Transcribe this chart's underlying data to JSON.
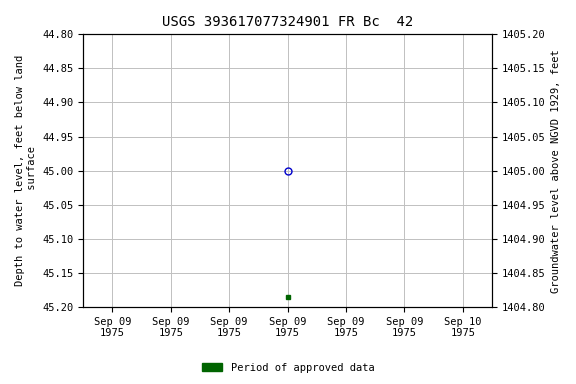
{
  "title": "USGS 393617077324901 FR Bc  42",
  "ylabel_left": "Depth to water level, feet below land\n surface",
  "ylabel_right": "Groundwater level above NGVD 1929, feet",
  "ylim_left": [
    45.2,
    44.8
  ],
  "ylim_right": [
    1404.8,
    1405.2
  ],
  "yticks_left": [
    44.8,
    44.85,
    44.9,
    44.95,
    45.0,
    45.05,
    45.1,
    45.15,
    45.2
  ],
  "yticks_right": [
    1404.8,
    1404.85,
    1404.9,
    1404.95,
    1405.0,
    1405.05,
    1405.1,
    1405.15,
    1405.2
  ],
  "data_point_x": 3.0,
  "data_point_y": 45.0,
  "data_point_color": "#0000cc",
  "data_point_marker": "o",
  "data_point_markersize": 5,
  "approved_point_x": 3.0,
  "approved_point_y": 45.185,
  "approved_point_color": "#006400",
  "approved_point_marker": "s",
  "approved_point_markersize": 3.5,
  "x_min": 0,
  "x_max": 6,
  "xlabel_dates": [
    "Sep 09\n1975",
    "Sep 09\n1975",
    "Sep 09\n1975",
    "Sep 09\n1975",
    "Sep 09\n1975",
    "Sep 09\n1975",
    "Sep 10\n1975"
  ],
  "background_color": "#ffffff",
  "grid_color": "#c0c0c0",
  "title_fontsize": 10,
  "axis_fontsize": 7.5,
  "tick_fontsize": 7.5,
  "legend_label": "Period of approved data",
  "legend_color": "#006400"
}
